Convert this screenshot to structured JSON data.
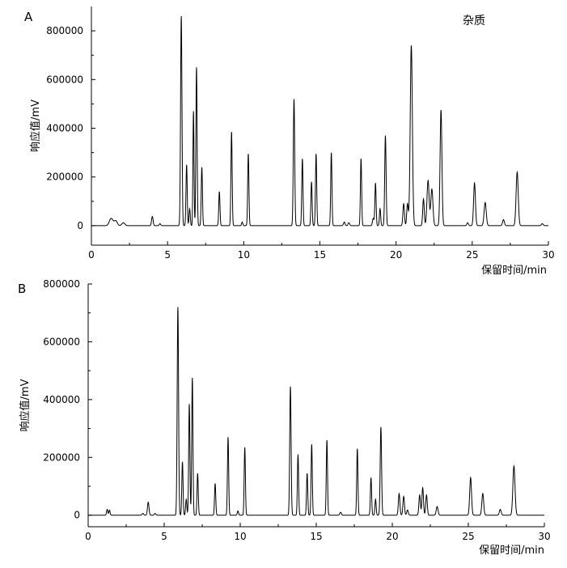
{
  "chart_data": [
    {
      "panel_label": "A",
      "type": "line",
      "annotation": "杂质",
      "xlabel": "保留时间/min",
      "ylabel": "响应值/mV",
      "xlim": [
        0,
        30
      ],
      "ylim": [
        -80000,
        900000
      ],
      "xticks": [
        0,
        5,
        10,
        15,
        20,
        25,
        30
      ],
      "yticks": [
        0,
        200000,
        400000,
        600000,
        800000
      ],
      "baseline": 0,
      "peaks": [
        {
          "t": 1.3,
          "h": 30000,
          "w": 0.12
        },
        {
          "t": 1.6,
          "h": 20000,
          "w": 0.1
        },
        {
          "t": 2.1,
          "h": 12000,
          "w": 0.1
        },
        {
          "t": 4.0,
          "h": 38000,
          "w": 0.05
        },
        {
          "t": 4.5,
          "h": 8000,
          "w": 0.05
        },
        {
          "t": 5.9,
          "h": 860000,
          "w": 0.045
        },
        {
          "t": 6.25,
          "h": 250000,
          "w": 0.04
        },
        {
          "t": 6.45,
          "h": 70000,
          "w": 0.04
        },
        {
          "t": 6.7,
          "h": 470000,
          "w": 0.035
        },
        {
          "t": 6.9,
          "h": 650000,
          "w": 0.04
        },
        {
          "t": 7.25,
          "h": 240000,
          "w": 0.04
        },
        {
          "t": 8.4,
          "h": 140000,
          "w": 0.04
        },
        {
          "t": 9.2,
          "h": 385000,
          "w": 0.04
        },
        {
          "t": 9.9,
          "h": 15000,
          "w": 0.04
        },
        {
          "t": 10.3,
          "h": 295000,
          "w": 0.04
        },
        {
          "t": 13.3,
          "h": 520000,
          "w": 0.045
        },
        {
          "t": 13.85,
          "h": 275000,
          "w": 0.04
        },
        {
          "t": 14.45,
          "h": 180000,
          "w": 0.04
        },
        {
          "t": 14.75,
          "h": 295000,
          "w": 0.04
        },
        {
          "t": 15.75,
          "h": 300000,
          "w": 0.04
        },
        {
          "t": 16.6,
          "h": 15000,
          "w": 0.05
        },
        {
          "t": 16.9,
          "h": 12000,
          "w": 0.05
        },
        {
          "t": 17.7,
          "h": 275000,
          "w": 0.04
        },
        {
          "t": 18.5,
          "h": 30000,
          "w": 0.05
        },
        {
          "t": 18.65,
          "h": 175000,
          "w": 0.04
        },
        {
          "t": 18.95,
          "h": 70000,
          "w": 0.04
        },
        {
          "t": 19.3,
          "h": 370000,
          "w": 0.045
        },
        {
          "t": 20.5,
          "h": 90000,
          "w": 0.05
        },
        {
          "t": 20.75,
          "h": 90000,
          "w": 0.05
        },
        {
          "t": 21.0,
          "h": 740000,
          "w": 0.07
        },
        {
          "t": 21.8,
          "h": 110000,
          "w": 0.05
        },
        {
          "t": 22.1,
          "h": 185000,
          "w": 0.07
        },
        {
          "t": 22.35,
          "h": 150000,
          "w": 0.07
        },
        {
          "t": 22.95,
          "h": 475000,
          "w": 0.06
        },
        {
          "t": 24.7,
          "h": 12000,
          "w": 0.05
        },
        {
          "t": 25.15,
          "h": 175000,
          "w": 0.06
        },
        {
          "t": 25.85,
          "h": 95000,
          "w": 0.07
        },
        {
          "t": 27.05,
          "h": 25000,
          "w": 0.06
        },
        {
          "t": 27.95,
          "h": 220000,
          "w": 0.07
        },
        {
          "t": 29.6,
          "h": 8000,
          "w": 0.06
        }
      ]
    },
    {
      "panel_label": "B",
      "type": "line",
      "xlabel": "保留时间/min",
      "ylabel": "响应值/mV",
      "xlim": [
        0,
        30
      ],
      "ylim": [
        -40000,
        800000
      ],
      "xticks": [
        0,
        5,
        10,
        15,
        20,
        25,
        30
      ],
      "yticks": [
        0,
        200000,
        400000,
        600000,
        800000
      ],
      "baseline": 0,
      "peaks": [
        {
          "t": 1.25,
          "h": 20000,
          "w": 0.04
        },
        {
          "t": 1.4,
          "h": 18000,
          "w": 0.04
        },
        {
          "t": 3.6,
          "h": 6000,
          "w": 0.05
        },
        {
          "t": 3.95,
          "h": 45000,
          "w": 0.05
        },
        {
          "t": 4.4,
          "h": 6000,
          "w": 0.05
        },
        {
          "t": 5.9,
          "h": 720000,
          "w": 0.045
        },
        {
          "t": 6.2,
          "h": 185000,
          "w": 0.04
        },
        {
          "t": 6.45,
          "h": 55000,
          "w": 0.04
        },
        {
          "t": 6.65,
          "h": 385000,
          "w": 0.04
        },
        {
          "t": 6.85,
          "h": 475000,
          "w": 0.04
        },
        {
          "t": 7.2,
          "h": 145000,
          "w": 0.04
        },
        {
          "t": 8.35,
          "h": 110000,
          "w": 0.04
        },
        {
          "t": 9.2,
          "h": 270000,
          "w": 0.04
        },
        {
          "t": 9.85,
          "h": 15000,
          "w": 0.04
        },
        {
          "t": 10.3,
          "h": 235000,
          "w": 0.04
        },
        {
          "t": 13.3,
          "h": 445000,
          "w": 0.045
        },
        {
          "t": 13.8,
          "h": 210000,
          "w": 0.04
        },
        {
          "t": 14.4,
          "h": 145000,
          "w": 0.04
        },
        {
          "t": 14.7,
          "h": 245000,
          "w": 0.04
        },
        {
          "t": 15.7,
          "h": 260000,
          "w": 0.04
        },
        {
          "t": 16.6,
          "h": 10000,
          "w": 0.05
        },
        {
          "t": 17.7,
          "h": 230000,
          "w": 0.04
        },
        {
          "t": 18.6,
          "h": 130000,
          "w": 0.04
        },
        {
          "t": 18.9,
          "h": 55000,
          "w": 0.04
        },
        {
          "t": 19.25,
          "h": 305000,
          "w": 0.045
        },
        {
          "t": 20.45,
          "h": 75000,
          "w": 0.05
        },
        {
          "t": 20.75,
          "h": 65000,
          "w": 0.05
        },
        {
          "t": 21.0,
          "h": 18000,
          "w": 0.05
        },
        {
          "t": 21.8,
          "h": 70000,
          "w": 0.05
        },
        {
          "t": 22.0,
          "h": 95000,
          "w": 0.05
        },
        {
          "t": 22.25,
          "h": 70000,
          "w": 0.05
        },
        {
          "t": 22.95,
          "h": 30000,
          "w": 0.06
        },
        {
          "t": 25.15,
          "h": 130000,
          "w": 0.06
        },
        {
          "t": 25.95,
          "h": 75000,
          "w": 0.06
        },
        {
          "t": 27.1,
          "h": 20000,
          "w": 0.06
        },
        {
          "t": 28.0,
          "h": 170000,
          "w": 0.07
        }
      ]
    }
  ]
}
